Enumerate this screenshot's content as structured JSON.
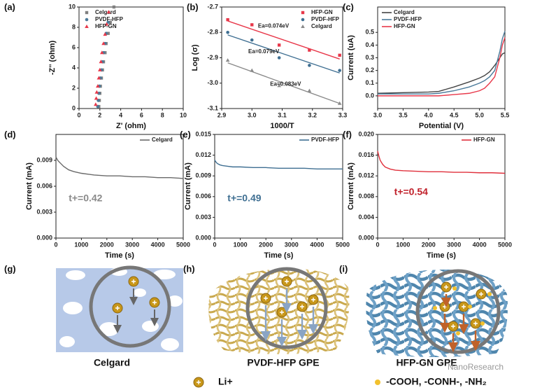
{
  "chart_data": [
    {
      "type": "scatter",
      "panel": "(a)",
      "xlabel": "Z' (ohm)",
      "ylabel": "-Z'' (ohm)",
      "xlim": [
        0,
        10
      ],
      "xticks": [
        0,
        2,
        4,
        6,
        8,
        10
      ],
      "ylim": [
        0,
        10
      ],
      "yticks": [
        0,
        2,
        4,
        6,
        8,
        10
      ],
      "legend": "upper left",
      "series": [
        {
          "name": "Celgard",
          "color": "#808080",
          "marker": "square",
          "x": [
            1.9,
            1.95,
            2.0,
            2.05,
            2.15,
            2.25,
            2.35,
            2.5,
            2.6,
            2.8,
            3.0,
            3.35
          ],
          "values": [
            0.2,
            0.8,
            1.5,
            2.2,
            3,
            3.8,
            4.6,
            5.5,
            6.4,
            7.4,
            8.5,
            10
          ]
        },
        {
          "name": "PVDF-HFP",
          "color": "#4a7a9a",
          "marker": "circle",
          "x": [
            1.8,
            1.85,
            1.9,
            1.95,
            2.05,
            2.15,
            2.25,
            2.35,
            2.5,
            2.6,
            2.8
          ],
          "values": [
            0.2,
            0.8,
            1.5,
            2.2,
            3,
            3.8,
            4.6,
            5.5,
            6.4,
            7.4,
            8.5
          ]
        },
        {
          "name": "HFP-GN",
          "color": "#e8384a",
          "marker": "triangle",
          "x": [
            1.6,
            1.65,
            1.7,
            1.8,
            1.9,
            2.0,
            2.1,
            2.2,
            2.35,
            2.5,
            2.65,
            2.85
          ],
          "values": [
            0.4,
            1,
            1.6,
            2.2,
            3,
            3.8,
            4.6,
            5.5,
            6.4,
            7.3,
            8.3,
            9.5
          ]
        }
      ]
    },
    {
      "type": "scatter",
      "panel": "(b)",
      "xlabel": "1000/T",
      "ylabel": "Log (σ)",
      "xlim": [
        2.9,
        3.3
      ],
      "xticks": [
        2.9,
        {
          "value": 3,
          "label": "3.0"
        },
        3.1,
        3.2,
        3.3
      ],
      "ylim": [
        -3.1,
        -2.7
      ],
      "yticks": [
        -2.7,
        -2.8,
        -2.9,
        {
          "value": -3,
          "label": "-3.0"
        },
        -3.1
      ],
      "legend": "upper right",
      "fit_x": [
        2.92,
        3.29
      ],
      "annotations": [
        {
          "text": "Ea=0.074eV",
          "color": "#222"
        },
        {
          "text": "Ea=0.079eV",
          "color": "#222"
        },
        {
          "text": "Ea=0.083eV",
          "color": "#222"
        }
      ],
      "series": [
        {
          "name": "HFP-GN",
          "color": "#e8384a",
          "marker": "square",
          "x": [
            2.92,
            3.0,
            3.09,
            3.19,
            3.29
          ],
          "values": [
            -2.75,
            -2.77,
            -2.85,
            -2.87,
            -2.89
          ],
          "fit": [
            -2.755,
            -2.905
          ]
        },
        {
          "name": "PVDF-HFP",
          "color": "#3f6f92",
          "marker": "circle",
          "x": [
            2.92,
            3.0,
            3.09,
            3.19,
            3.29
          ],
          "values": [
            -2.8,
            -2.83,
            -2.9,
            -2.93,
            -2.95
          ],
          "fit": [
            -2.81,
            -2.96
          ]
        },
        {
          "name": "Celgard",
          "color": "#8a8a8a",
          "marker": "triangle",
          "x": [
            2.92,
            3.0,
            3.09,
            3.19,
            3.29
          ],
          "values": [
            -2.91,
            -2.95,
            -3.01,
            -3.03,
            -3.08
          ],
          "fit": [
            -2.92,
            -3.08
          ]
        }
      ]
    },
    {
      "type": "line",
      "panel": "(c)",
      "xlabel": "Potential (V)",
      "ylabel": "Current (uA)",
      "xlim": [
        3.0,
        5.5
      ],
      "xticks": [
        {
          "value": 3,
          "label": "3.0"
        },
        3.5,
        {
          "value": 4,
          "label": "4.0"
        },
        4.5,
        {
          "value": 5,
          "label": "5.0"
        },
        5.5
      ],
      "ylim": [
        -0.1,
        0.7
      ],
      "yticks": [
        {
          "value": 0,
          "label": "0.0"
        },
        0.1,
        0.2,
        0.3,
        0.4,
        0.5
      ],
      "legend": "upper left",
      "x": [
        3.0,
        3.5,
        4.0,
        4.2,
        4.5,
        4.8,
        5.0,
        5.1,
        5.2,
        5.3,
        5.4,
        5.45,
        5.5
      ],
      "series": [
        {
          "name": "Celgard",
          "color": "#444444",
          "values": [
            0.02,
            0.025,
            0.03,
            0.035,
            0.07,
            0.11,
            0.14,
            0.16,
            0.19,
            0.24,
            0.3,
            0.33,
            0.34
          ]
        },
        {
          "name": "PVDF-HFP",
          "color": "#4a7a9a",
          "values": [
            0.015,
            0.015,
            0.015,
            0.02,
            0.04,
            0.07,
            0.1,
            0.12,
            0.15,
            0.2,
            0.35,
            0.45,
            0.51
          ]
        },
        {
          "name": "HFP-GN",
          "color": "#e8384a",
          "values": [
            0.0,
            0.0,
            0.0,
            0.0,
            0.01,
            0.02,
            0.04,
            0.06,
            0.1,
            0.15,
            0.3,
            0.4,
            0.46
          ]
        }
      ]
    },
    {
      "type": "line",
      "panel": "(d)",
      "xlabel": "Time (s)",
      "ylabel": "Current (mA)",
      "xlim": [
        0,
        5000
      ],
      "xticks": [
        0,
        1000,
        2000,
        3000,
        4000,
        5000
      ],
      "ylim": [
        0,
        0.012
      ],
      "yticks": [
        {
          "value": 0,
          "label": "0.000"
        },
        0.003,
        0.006,
        0.009
      ],
      "legend": "upper right",
      "annotations": [
        {
          "text": "t+=0.42",
          "color": "#8a8a8a"
        }
      ],
      "x": [
        0,
        50,
        100,
        200,
        300,
        500,
        700,
        1000,
        1500,
        2000,
        2500,
        3000,
        3500,
        4000,
        4500,
        5000
      ],
      "series": [
        {
          "name": "Celgard",
          "color": "#6a6a6a",
          "values": [
            0.0094,
            0.0091,
            0.0089,
            0.0086,
            0.0083,
            0.0079,
            0.0077,
            0.0075,
            0.0073,
            0.0072,
            0.0072,
            0.0071,
            0.0071,
            0.007,
            0.007,
            0.0069
          ]
        }
      ]
    },
    {
      "type": "line",
      "panel": "(e)",
      "xlabel": "Time (s)",
      "ylabel": "Current (mA)",
      "xlim": [
        0,
        5000
      ],
      "xticks": [
        0,
        1000,
        2000,
        3000,
        4000,
        5000
      ],
      "ylim": [
        0,
        0.015
      ],
      "yticks": [
        {
          "value": 0,
          "label": "0.000"
        },
        0.003,
        0.006,
        0.009,
        0.012,
        0.015
      ],
      "legend": "upper right",
      "annotations": [
        {
          "text": "t+=0.49",
          "color": "#3f6f92"
        }
      ],
      "x": [
        0,
        50,
        100,
        200,
        300,
        500,
        700,
        1000,
        1500,
        2000,
        2500,
        3000,
        3500,
        4000,
        4500,
        5000
      ],
      "series": [
        {
          "name": "PVDF-HFP",
          "color": "#3f6f92",
          "values": [
            0.0113,
            0.011,
            0.0108,
            0.0106,
            0.0105,
            0.0104,
            0.0103,
            0.0103,
            0.0102,
            0.0102,
            0.0101,
            0.0101,
            0.0101,
            0.01,
            0.01,
            0.01
          ]
        }
      ]
    },
    {
      "type": "line",
      "panel": "(f)",
      "xlabel": "Time (s)",
      "ylabel": "Current (mA)",
      "xlim": [
        0,
        5000
      ],
      "xticks": [
        0,
        1000,
        2000,
        3000,
        4000,
        5000
      ],
      "ylim": [
        0,
        0.02
      ],
      "yticks": [
        {
          "value": 0,
          "label": "0.000"
        },
        0.004,
        0.008,
        0.012,
        0.016,
        {
          "value": 0.02,
          "label": "0.020"
        }
      ],
      "legend": "upper right",
      "annotations": [
        {
          "text": "t+=0.54",
          "color": "#c0202a"
        }
      ],
      "x": [
        0,
        50,
        100,
        200,
        300,
        500,
        700,
        1000,
        1500,
        2000,
        2500,
        3000,
        3500,
        4000,
        4500,
        5000
      ],
      "series": [
        {
          "name": "HFP-GN",
          "color": "#e0303c",
          "values": [
            0.0168,
            0.0158,
            0.015,
            0.0142,
            0.0137,
            0.0133,
            0.0131,
            0.013,
            0.0129,
            0.0128,
            0.0128,
            0.0127,
            0.0127,
            0.0126,
            0.0126,
            0.0125
          ]
        }
      ]
    }
  ],
  "schematic": {
    "panels": [
      {
        "label": "(g)",
        "caption": "Celgard"
      },
      {
        "label": "(h)",
        "caption": "PVDF-HFP GPE"
      },
      {
        "label": "(i)",
        "caption": "HFP-GN GPE"
      }
    ],
    "legend": [
      {
        "label": "Li+"
      },
      {
        "label": "-COOH, -CONH-, -NH₂"
      }
    ],
    "watermark": "NanoResearch"
  }
}
